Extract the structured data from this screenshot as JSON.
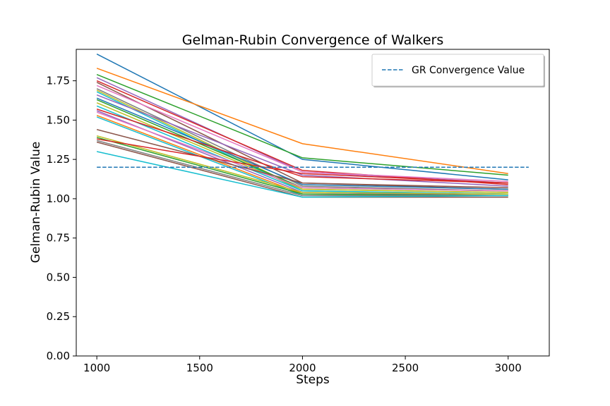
{
  "chart_data": {
    "type": "line",
    "title": "Gelman-Rubin Convergence of Walkers",
    "xlabel": "Steps",
    "ylabel": "Gelman-Rubin Value",
    "x": [
      1000,
      2000,
      3000
    ],
    "xlim": [
      900,
      3200
    ],
    "ylim": [
      0,
      1.95
    ],
    "xticks": [
      1000,
      1500,
      2000,
      2500,
      3000
    ],
    "xtick_labels": [
      "1000",
      "1500",
      "2000",
      "2500",
      "3000"
    ],
    "yticks": [
      0,
      0.25,
      0.5,
      0.75,
      1.0,
      1.25,
      1.5,
      1.75
    ],
    "ytick_labels": [
      "0.00",
      "0.25",
      "0.50",
      "0.75",
      "1.00",
      "1.25",
      "1.50",
      "1.75"
    ],
    "grid": false,
    "legend_position": "upper right",
    "reference_line": {
      "name": "GR Convergence Value",
      "y": 1.2,
      "x_range": [
        1000,
        3100
      ],
      "style": "dashed",
      "color": "#1f77b4"
    },
    "series": [
      {
        "values": [
          1.92,
          1.25,
          1.12
        ],
        "color": "#1f77b4"
      },
      {
        "values": [
          1.83,
          1.35,
          1.16
        ],
        "color": "#ff7f0e"
      },
      {
        "values": [
          1.79,
          1.26,
          1.15
        ],
        "color": "#2ca02c"
      },
      {
        "values": [
          1.77,
          1.17,
          1.1
        ],
        "color": "#9467bd"
      },
      {
        "values": [
          1.75,
          1.18,
          1.09
        ],
        "color": "#d62728"
      },
      {
        "values": [
          1.74,
          1.1,
          1.06
        ],
        "color": "#8c564b"
      },
      {
        "values": [
          1.72,
          1.17,
          1.11
        ],
        "color": "#e377c2"
      },
      {
        "values": [
          1.7,
          1.08,
          1.05
        ],
        "color": "#7f7f7f"
      },
      {
        "values": [
          1.69,
          1.06,
          1.04
        ],
        "color": "#bcbd22"
      },
      {
        "values": [
          1.68,
          1.05,
          1.03
        ],
        "color": "#17becf"
      },
      {
        "values": [
          1.66,
          1.15,
          1.08
        ],
        "color": "#9467bd"
      },
      {
        "values": [
          1.64,
          1.09,
          1.06
        ],
        "color": "#1f77b4"
      },
      {
        "values": [
          1.63,
          1.07,
          1.05
        ],
        "color": "#2ca02c"
      },
      {
        "values": [
          1.61,
          1.06,
          1.04
        ],
        "color": "#bcbd22"
      },
      {
        "values": [
          1.59,
          1.05,
          1.03
        ],
        "color": "#17becf"
      },
      {
        "values": [
          1.57,
          1.14,
          1.1
        ],
        "color": "#d62728"
      },
      {
        "values": [
          1.56,
          1.04,
          1.02
        ],
        "color": "#9467bd"
      },
      {
        "values": [
          1.55,
          1.07,
          1.05
        ],
        "color": "#e377c2"
      },
      {
        "values": [
          1.53,
          1.03,
          1.02
        ],
        "color": "#ff7f0e"
      },
      {
        "values": [
          1.52,
          1.02,
          1.02
        ],
        "color": "#17becf"
      },
      {
        "values": [
          1.44,
          1.1,
          1.07
        ],
        "color": "#8c564b"
      },
      {
        "values": [
          1.4,
          1.04,
          1.03
        ],
        "color": "#bcbd22"
      },
      {
        "values": [
          1.39,
          1.03,
          1.02
        ],
        "color": "#2ca02c"
      },
      {
        "values": [
          1.38,
          1.16,
          1.1
        ],
        "color": "#d62728"
      },
      {
        "values": [
          1.37,
          1.02,
          1.02
        ],
        "color": "#7f7f7f"
      },
      {
        "values": [
          1.36,
          1.01,
          1.01
        ],
        "color": "#8c564b"
      },
      {
        "values": [
          1.3,
          1.01,
          1.02
        ],
        "color": "#17becf"
      }
    ]
  }
}
